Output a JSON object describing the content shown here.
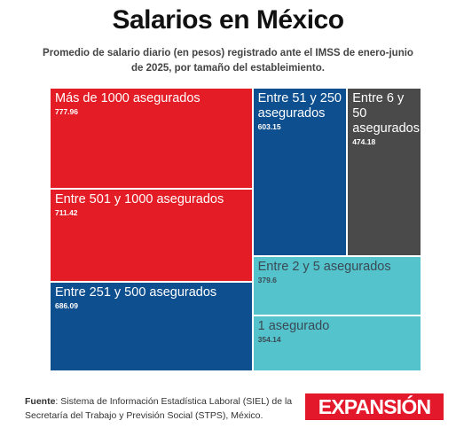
{
  "title": "Salarios en México",
  "subtitle": "Promedio de salario diario (en pesos) registrado ante el IMSS de enero-junio de 2025, por tamaño del estableimiento.",
  "source": {
    "label": "Fuente",
    "text": ": Sistema de Información Estadística Laboral (SIEL) de la Secretaría del Trabajo y Previsión Social (STPS), México."
  },
  "brand": "EXPANSIÓN",
  "colors": {
    "red": "#e31c25",
    "blue": "#0e4f8f",
    "gray": "#4a4a4a",
    "teal": "#54c3cc"
  },
  "chart_data": {
    "type": "treemap",
    "title": "Salarios en México",
    "series": [
      {
        "name": "Más de 1000 asegurados",
        "value": 777.96,
        "color": "red"
      },
      {
        "name": "Entre 501 y 1000 asegurados",
        "value": 711.42,
        "color": "red"
      },
      {
        "name": "Entre 251 y 500 asegurados",
        "value": 686.09,
        "color": "blue"
      },
      {
        "name": "Entre 51 y 250 asegurados",
        "value": 603.15,
        "color": "blue"
      },
      {
        "name": "Entre 6 y 50 asegurados",
        "value": 474.18,
        "color": "gray"
      },
      {
        "name": "Entre 2 y 5 asegurados",
        "value": 379.6,
        "color": "teal"
      },
      {
        "name": "1 asegurado",
        "value": 354.14,
        "color": "teal"
      }
    ]
  }
}
